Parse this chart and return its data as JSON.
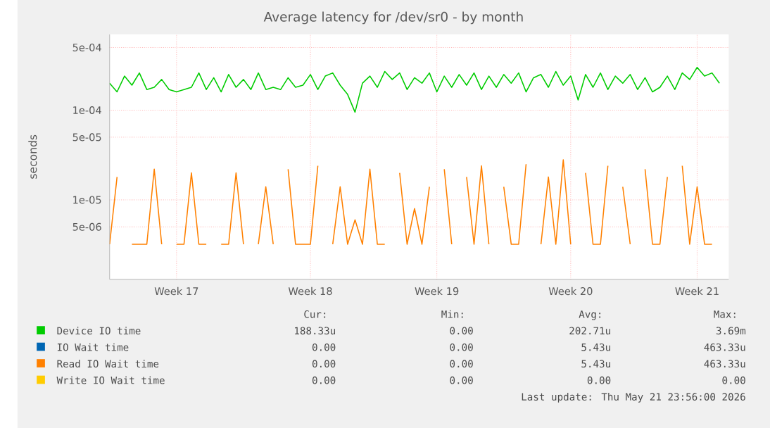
{
  "chart_data": {
    "type": "line",
    "title": "Average latency for /dev/sr0 - by month",
    "ylabel": "seconds",
    "log": true,
    "grid": true,
    "legend": "bottom",
    "marker": "none",
    "line_style": "solid",
    "ylim": [
      1.3e-06,
      0.0007
    ],
    "yticks": [
      {
        "value": 5e-06,
        "label": "5e-06"
      },
      {
        "value": 1e-05,
        "label": "1e-05"
      },
      {
        "value": 5e-05,
        "label": "5e-05"
      },
      {
        "value": 0.0001,
        "label": "1e-04"
      },
      {
        "value": 0.0005,
        "label": "5e-04"
      }
    ],
    "categories": [
      null,
      null,
      null,
      null,
      null,
      null,
      null,
      null,
      null,
      "Week 17",
      null,
      null,
      null,
      null,
      null,
      null,
      null,
      null,
      null,
      null,
      null,
      null,
      null,
      null,
      null,
      null,
      null,
      "Week 18",
      null,
      null,
      null,
      null,
      null,
      null,
      null,
      null,
      null,
      null,
      null,
      null,
      null,
      null,
      null,
      null,
      "Week 19",
      null,
      null,
      null,
      null,
      null,
      null,
      null,
      null,
      null,
      null,
      null,
      null,
      null,
      null,
      null,
      null,
      null,
      "Week 20",
      null,
      null,
      null,
      null,
      null,
      null,
      null,
      null,
      null,
      null,
      null,
      null,
      null,
      null,
      null,
      null,
      "Week 21",
      null,
      null,
      null
    ],
    "series": [
      {
        "name": "Device IO time",
        "color": "#00cc00",
        "values": [
          0.0002,
          0.00016,
          0.00024,
          0.00019,
          0.00026,
          0.00017,
          0.00018,
          0.00022,
          0.00017,
          0.00016,
          0.00017,
          0.00018,
          0.00026,
          0.00017,
          0.00023,
          0.00016,
          0.00025,
          0.00018,
          0.00022,
          0.00017,
          0.00026,
          0.00017,
          0.00018,
          0.00017,
          0.00023,
          0.00018,
          0.00019,
          0.00025,
          0.00017,
          0.00024,
          0.00026,
          0.00019,
          0.00015,
          9.5e-05,
          0.0002,
          0.00024,
          0.00018,
          0.00027,
          0.00022,
          0.00026,
          0.00017,
          0.00023,
          0.0002,
          0.00026,
          0.00016,
          0.00024,
          0.00018,
          0.00025,
          0.00019,
          0.00026,
          0.00017,
          0.00024,
          0.00018,
          0.00025,
          0.0002,
          0.00026,
          0.00016,
          0.00023,
          0.00025,
          0.00018,
          0.00027,
          0.00019,
          0.00024,
          0.00013,
          0.00025,
          0.00018,
          0.00026,
          0.00017,
          0.00024,
          0.0002,
          0.00025,
          0.00017,
          0.00023,
          0.00016,
          0.00018,
          0.00024,
          0.00017,
          0.00026,
          0.00022,
          0.0003,
          0.00024,
          0.00026,
          0.0002
        ]
      },
      {
        "name": "IO Wait time",
        "color": "#0066b3",
        "values": [
          null,
          null,
          null,
          null,
          null,
          null,
          null,
          null,
          null,
          null,
          null,
          null,
          null,
          null,
          null,
          null,
          null,
          null,
          null,
          null,
          null,
          null,
          null,
          null,
          null,
          null,
          null,
          null,
          null,
          null,
          null,
          null,
          null,
          null,
          null,
          null,
          null,
          null,
          null,
          null,
          null,
          null,
          null,
          null,
          null,
          null,
          null,
          null,
          null,
          null,
          null,
          null,
          null,
          null,
          null,
          null,
          null,
          null,
          null,
          null,
          null,
          null,
          null,
          null,
          null,
          null,
          null,
          null,
          null,
          null,
          null,
          null,
          null,
          null,
          null,
          null,
          null,
          null,
          null,
          null,
          null,
          null,
          null
        ]
      },
      {
        "name": "Read IO Wait time",
        "color": "#ff8000",
        "values": [
          3.2e-06,
          1.8e-05,
          null,
          3.2e-06,
          3.2e-06,
          3.2e-06,
          2.2e-05,
          3.2e-06,
          null,
          3.2e-06,
          3.2e-06,
          2e-05,
          3.2e-06,
          3.2e-06,
          null,
          3.2e-06,
          3.2e-06,
          2e-05,
          3.2e-06,
          null,
          3.2e-06,
          1.4e-05,
          3.2e-06,
          null,
          2.2e-05,
          3.2e-06,
          3.2e-06,
          3.2e-06,
          2.4e-05,
          null,
          3.2e-06,
          1.4e-05,
          3.2e-06,
          6e-06,
          3.2e-06,
          2.2e-05,
          3.2e-06,
          3.2e-06,
          null,
          2e-05,
          3.2e-06,
          8e-06,
          3.2e-06,
          1.4e-05,
          null,
          2.2e-05,
          3.2e-06,
          null,
          1.8e-05,
          3.2e-06,
          2.4e-05,
          3.2e-06,
          null,
          1.4e-05,
          3.2e-06,
          3.2e-06,
          2.5e-05,
          null,
          3.2e-06,
          1.8e-05,
          3.2e-06,
          2.8e-05,
          3.2e-06,
          null,
          2e-05,
          3.2e-06,
          3.2e-06,
          2.4e-05,
          null,
          1.4e-05,
          3.2e-06,
          null,
          2.2e-05,
          3.2e-06,
          3.2e-06,
          1.8e-05,
          null,
          2.4e-05,
          3.2e-06,
          1.4e-05,
          3.2e-06,
          3.2e-06,
          null
        ]
      },
      {
        "name": "Write IO Wait time",
        "color": "#ffcc00",
        "values": [
          null,
          null,
          null,
          null,
          null,
          null,
          null,
          null,
          null,
          null,
          null,
          null,
          null,
          null,
          null,
          null,
          null,
          null,
          null,
          null,
          null,
          null,
          null,
          null,
          null,
          null,
          null,
          null,
          null,
          null,
          null,
          null,
          null,
          null,
          null,
          null,
          null,
          null,
          null,
          null,
          null,
          null,
          null,
          null,
          null,
          null,
          null,
          null,
          null,
          null,
          null,
          null,
          null,
          null,
          null,
          null,
          null,
          null,
          null,
          null,
          null,
          null,
          null,
          null,
          null,
          null,
          null,
          null,
          null,
          null,
          null,
          null,
          null,
          null,
          null,
          null,
          null,
          null,
          null,
          null,
          null,
          null,
          null
        ]
      }
    ],
    "annotations": [
      "Cur:",
      "Min:",
      "Avg:",
      "Max:",
      "188.33u",
      "0.00",
      "202.71u",
      "3.69m",
      "0.00",
      "0.00",
      "5.43u",
      "463.33u",
      "0.00",
      "0.00",
      "5.43u",
      "463.33u",
      "0.00",
      "0.00",
      "0.00",
      "0.00",
      "Last update: Thu May 21 23:56:00 2026"
    ]
  }
}
